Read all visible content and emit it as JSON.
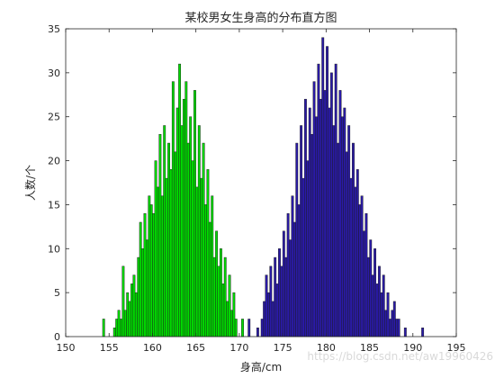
{
  "chart_data": {
    "type": "bar",
    "title": "某校男女生身高的分布直方图",
    "xlabel": "身高/cm",
    "ylabel": "人数/个",
    "xlim": [
      150,
      195
    ],
    "ylim": [
      0,
      35
    ],
    "xticks": [
      150,
      155,
      160,
      165,
      170,
      175,
      180,
      185,
      190,
      195
    ],
    "yticks": [
      0,
      5,
      10,
      15,
      20,
      25,
      30,
      35
    ],
    "bin_width": 0.25,
    "grid": false,
    "legend": "none",
    "series": [
      {
        "color": "#00dd00",
        "x": [
          154.25,
          155.5,
          155.75,
          156.0,
          156.25,
          156.5,
          156.75,
          157.0,
          157.25,
          157.5,
          157.75,
          158.0,
          158.25,
          158.5,
          158.75,
          159.0,
          159.25,
          159.5,
          159.75,
          160.0,
          160.25,
          160.5,
          160.75,
          161.0,
          161.25,
          161.5,
          161.75,
          162.0,
          162.25,
          162.5,
          162.75,
          163.0,
          163.25,
          163.5,
          163.75,
          164.0,
          164.25,
          164.5,
          164.75,
          165.0,
          165.25,
          165.5,
          165.75,
          166.0,
          166.25,
          166.5,
          166.75,
          167.0,
          167.25,
          167.5,
          167.75,
          168.0,
          168.25,
          168.5,
          168.75,
          169.0,
          169.25,
          169.5,
          170.25
        ],
        "y": [
          2,
          1,
          2,
          3,
          2,
          8,
          3,
          5,
          4,
          6,
          7,
          5,
          9,
          13,
          10,
          14,
          11,
          16,
          15,
          14,
          20,
          17,
          23,
          16,
          24,
          18,
          22,
          19,
          29,
          21,
          26,
          31,
          24,
          27,
          29,
          22,
          25,
          20,
          28,
          17,
          24,
          18,
          22,
          15,
          19,
          13,
          16,
          9,
          12,
          8,
          10,
          6,
          9,
          4,
          7,
          3,
          5,
          2,
          2
        ]
      },
      {
        "color": "#2a1aa8",
        "x": [
          171.0,
          172.0,
          172.5,
          172.75,
          173.0,
          173.25,
          173.5,
          173.75,
          174.0,
          174.25,
          174.5,
          174.75,
          175.0,
          175.25,
          175.5,
          175.75,
          176.0,
          176.25,
          176.5,
          176.75,
          177.0,
          177.25,
          177.5,
          177.75,
          178.0,
          178.25,
          178.5,
          178.75,
          179.0,
          179.25,
          179.5,
          179.75,
          180.0,
          180.25,
          180.5,
          180.75,
          181.0,
          181.25,
          181.5,
          181.75,
          182.0,
          182.25,
          182.5,
          182.75,
          183.0,
          183.25,
          183.5,
          183.75,
          184.0,
          184.25,
          184.5,
          184.75,
          185.0,
          185.25,
          185.5,
          185.75,
          186.0,
          186.25,
          186.5,
          186.75,
          187.0,
          187.25,
          187.5,
          187.75,
          188.0,
          188.25,
          189.0,
          191.0
        ],
        "y": [
          2,
          1,
          2,
          4,
          7,
          5,
          8,
          4,
          9,
          6,
          10,
          8,
          12,
          9,
          14,
          11,
          16,
          13,
          22,
          15,
          24,
          18,
          27,
          20,
          26,
          23,
          29,
          25,
          31,
          27,
          34,
          28,
          33,
          26,
          30,
          24,
          31,
          22,
          28,
          25,
          26,
          21,
          24,
          18,
          22,
          17,
          19,
          15,
          16,
          12,
          14,
          9,
          11,
          7,
          10,
          6,
          8,
          5,
          7,
          3,
          5,
          2,
          3,
          4,
          2,
          2,
          1,
          1
        ]
      }
    ]
  },
  "watermark": "https://blog.csdn.net/aw19960426"
}
